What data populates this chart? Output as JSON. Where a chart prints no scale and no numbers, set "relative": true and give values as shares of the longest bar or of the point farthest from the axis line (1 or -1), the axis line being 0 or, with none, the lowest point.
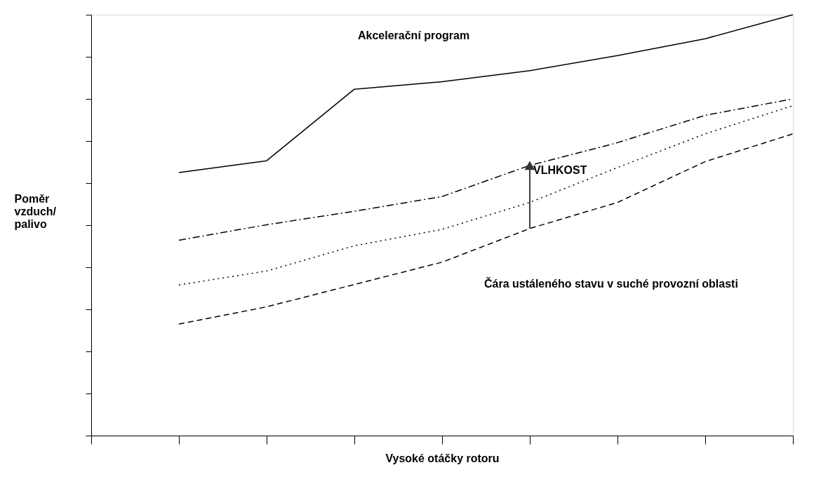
{
  "chart_data": {
    "type": "line",
    "relative": true,
    "xlabel": "Vysoké otáčky rotoru",
    "ylabel": "Poměr vzduch/palivo",
    "categories": [
      null,
      null,
      null,
      null,
      null,
      null,
      null,
      null,
      null
    ],
    "series": [
      {
        "color": "#000000",
        "line_style": "solid",
        "values": [
          null,
          0.625,
          0.653,
          0.823,
          0.841,
          0.867,
          0.903,
          0.943,
          1.0
        ]
      },
      {
        "color": "#000000",
        "line_style": "dashdot",
        "values": [
          null,
          0.464,
          0.501,
          0.533,
          0.568,
          0.642,
          0.696,
          0.761,
          0.8
        ]
      },
      {
        "color": "#000000",
        "line_style": "dotted",
        "values": [
          null,
          0.358,
          0.391,
          0.451,
          0.49,
          0.554,
          0.637,
          0.717,
          0.784
        ]
      },
      {
        "color": "#000000",
        "line_style": "dashed",
        "values": [
          null,
          0.265,
          0.306,
          0.359,
          0.412,
          0.492,
          0.554,
          0.651,
          0.717
        ]
      }
    ],
    "annotations": [
      "Akcelerační program",
      "VLHKOST",
      "Čára ustáleného stavu v suché provozní oblasti"
    ],
    "grid": false
  }
}
